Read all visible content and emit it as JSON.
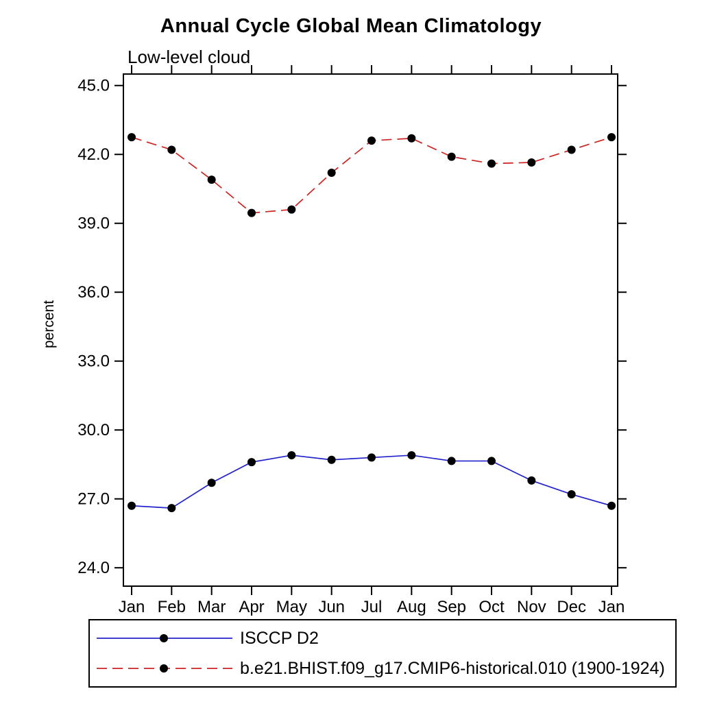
{
  "chart_data": {
    "type": "line",
    "title": "Annual Cycle Global Mean Climatology",
    "subtitle": "Low-level cloud",
    "ylabel": "percent",
    "xlabel": "",
    "categories": [
      "Jan",
      "Feb",
      "Mar",
      "Apr",
      "May",
      "Jun",
      "Jul",
      "Aug",
      "Sep",
      "Oct",
      "Nov",
      "Dec",
      "Jan"
    ],
    "yticks": [
      24.0,
      27.0,
      30.0,
      33.0,
      36.0,
      39.0,
      42.0,
      45.0
    ],
    "ytick_labels": [
      "24.0",
      "27.0",
      "30.0",
      "33.0",
      "36.0",
      "39.0",
      "42.0",
      "45.0"
    ],
    "ylim": [
      23.2,
      45.5
    ],
    "grid": false,
    "legend_position": "bottom",
    "marker": {
      "shape": "circle",
      "color": "#000000",
      "radius": 6
    },
    "series": [
      {
        "name": "ISCCP D2",
        "color": "#2222cc",
        "style": "solid",
        "values": [
          26.7,
          26.6,
          27.7,
          28.6,
          28.9,
          28.7,
          28.8,
          28.9,
          28.65,
          28.65,
          27.8,
          27.2,
          26.7
        ]
      },
      {
        "name": "b.e21.BHIST.f09_g17.CMIP6-historical.010 (1900-1924)",
        "color": "#cc2222",
        "style": "dashed",
        "values": [
          42.75,
          42.2,
          40.9,
          39.45,
          39.6,
          41.2,
          42.6,
          42.7,
          41.9,
          41.6,
          41.65,
          42.2,
          42.75
        ]
      }
    ]
  }
}
